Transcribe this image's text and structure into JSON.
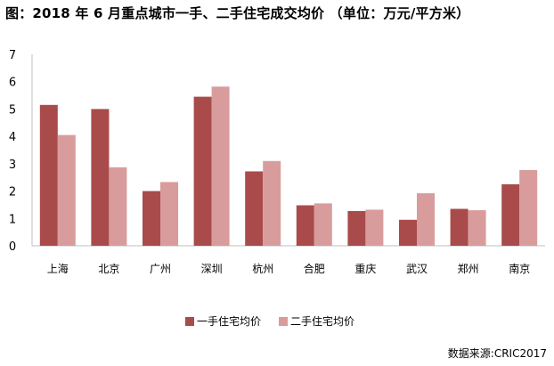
{
  "colors": {
    "series1": "#a94b4b",
    "series2": "#d99c9c",
    "axis": "#bfbfbf"
  },
  "source": "数据来源:CRIC2017",
  "chart_data": {
    "type": "bar",
    "title": "图：2018 年 6 月重点城市一手、二手住宅成交均价 （单位：万元/平方米）",
    "categories": [
      "上海",
      "北京",
      "广州",
      "深圳",
      "杭州",
      "合肥",
      "重庆",
      "武汉",
      "郑州",
      "南京"
    ],
    "series": [
      {
        "name": "一手住宅均价",
        "values": [
          5.15,
          5.0,
          2.0,
          5.45,
          2.72,
          1.48,
          1.27,
          0.95,
          1.35,
          2.25
        ]
      },
      {
        "name": "二手住宅均价",
        "values": [
          4.05,
          2.87,
          2.33,
          5.82,
          3.1,
          1.55,
          1.32,
          1.92,
          1.3,
          2.77
        ]
      }
    ],
    "yticks": [
      "0",
      "1",
      "2",
      "3",
      "4",
      "5",
      "6",
      "7"
    ],
    "ylim": [
      0,
      7
    ],
    "xlabel": "",
    "ylabel": "",
    "grid": false,
    "legend": "bottom"
  }
}
